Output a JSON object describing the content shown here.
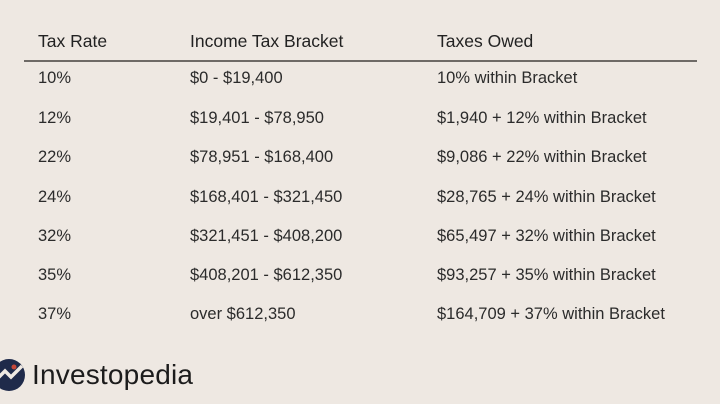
{
  "table": {
    "headers": [
      "Tax Rate",
      "Income Tax Bracket",
      "Taxes Owed"
    ],
    "rows": [
      [
        "10%",
        "$0 - $19,400",
        "10% within Bracket"
      ],
      [
        "12%",
        "$19,401 - $78,950",
        "$1,940 + 12% within Bracket"
      ],
      [
        "22%",
        "$78,951 - $168,400",
        "$9,086 + 22% within Bracket"
      ],
      [
        "24%",
        "$168,401 - $321,450",
        "$28,765 + 24% within Bracket"
      ],
      [
        "32%",
        "$321,451 - $408,200",
        "$65,497 + 32% within Bracket"
      ],
      [
        "35%",
        "$408,201 - $612,350",
        "$93,257 + 35% within Bracket"
      ],
      [
        "37%",
        "over $612,350",
        "$164,709 + 37% within Bracket"
      ]
    ]
  },
  "brand": {
    "name": "Investopedia",
    "logo_color": "#1f2a4a",
    "icon": "investopedia-logo-icon"
  },
  "colors": {
    "background": "#eee8e2",
    "text": "#2b2b2b",
    "rule": "#6e6a66"
  }
}
